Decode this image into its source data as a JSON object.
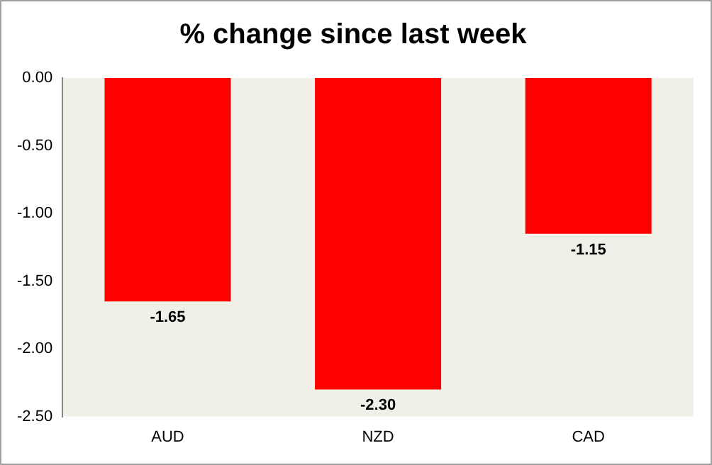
{
  "chart_data": {
    "type": "bar",
    "title": "% change since last week",
    "categories": [
      "AUD",
      "NZD",
      "CAD"
    ],
    "values": [
      -1.65,
      -2.3,
      -1.15
    ],
    "value_labels": [
      "-1.65",
      "-2.30",
      "-1.15"
    ],
    "color": "#ff0000",
    "ylim": [
      -2.5,
      0
    ],
    "yticks": [
      {
        "value": 0,
        "label": "0.00"
      },
      {
        "value": -0.5,
        "label": "-0.50"
      },
      {
        "value": -1,
        "label": "-1.00"
      },
      {
        "value": -1.5,
        "label": "-1.50"
      },
      {
        "value": -2,
        "label": "-2.00"
      },
      {
        "value": -2.5,
        "label": "-2.50"
      }
    ],
    "grid": false,
    "legend": false
  }
}
